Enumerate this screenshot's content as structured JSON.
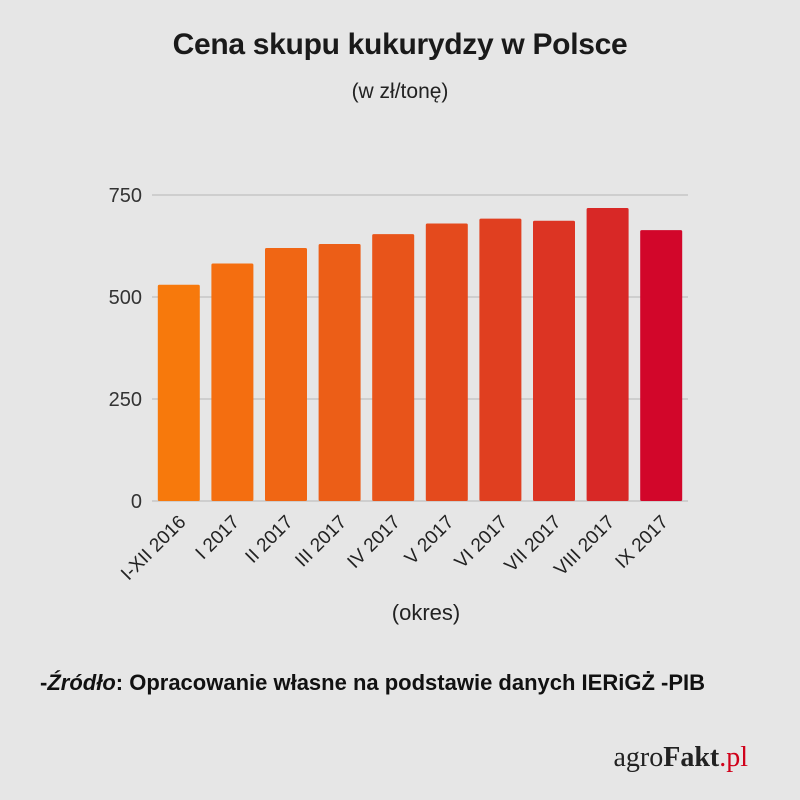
{
  "chart_data": {
    "type": "bar",
    "title": "Cena skupu kukurydzy w Polsce",
    "subtitle": "(w zł/tonę)",
    "xlabel": "(okres)",
    "ylabel": "",
    "categories": [
      "I-XII 2016",
      "I 2017",
      "II 2017",
      "III 2017",
      "IV 2017",
      "V 2017",
      "VI 2017",
      "VII 2017",
      "VIII 2017",
      "IX 2017"
    ],
    "values": [
      530,
      582,
      620,
      630,
      654,
      680,
      692,
      687,
      718,
      664
    ],
    "ylim": [
      0,
      750
    ],
    "yticks": [
      0,
      250,
      500,
      750
    ],
    "grid": true,
    "bar_colors": [
      "#f7790c",
      "#f46e10",
      "#f06614",
      "#ec5e17",
      "#e8541a",
      "#e44a1d",
      "#e03f20",
      "#dc3423",
      "#d82826",
      "#d2062a"
    ]
  },
  "source": {
    "prefix": "-",
    "label": "Źródło",
    "text": ": Opracowanie własne na podstawie danych IERiGŻ -PIB"
  },
  "logo": {
    "part1": "agro",
    "part2": "Fakt",
    "part3": ".pl"
  }
}
